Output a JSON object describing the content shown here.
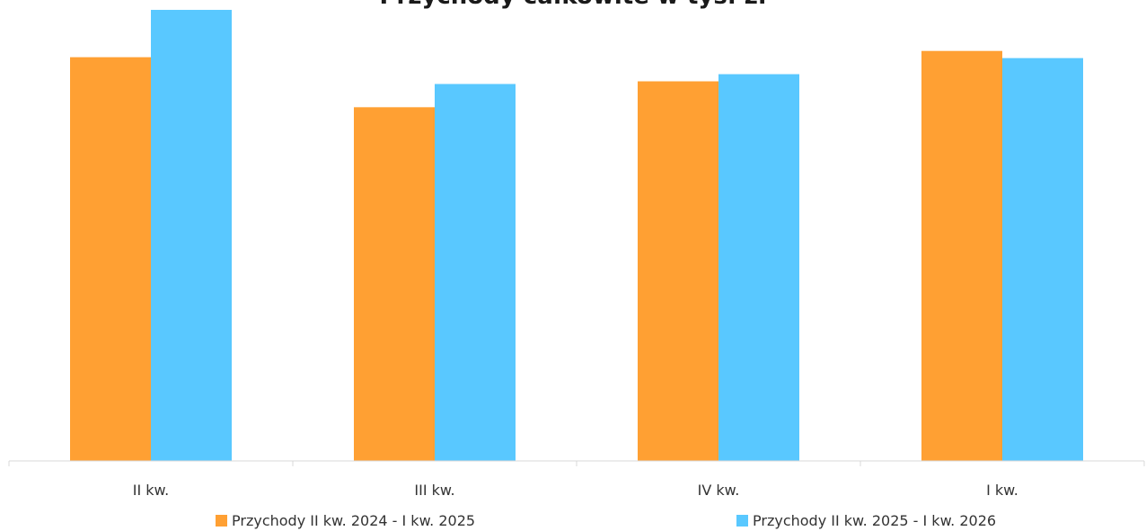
{
  "chart_data": {
    "type": "bar",
    "title": "Przychody całkowite w tys. zł",
    "categories": [
      "II kw.",
      "III kw.",
      "IV kw.",
      "I kw."
    ],
    "series": [
      {
        "name": "Przychody II kw. 2024 - I kw. 2025",
        "color": "#FFA033",
        "values": [
          452,
          396,
          425,
          459
        ]
      },
      {
        "name": "Przychody II kw. 2025 - I kw. 2026",
        "color": "#59C8FF",
        "values": [
          505,
          422,
          433,
          451
        ]
      }
    ],
    "ylim": [
      0,
      510
    ],
    "grid": false,
    "legend": "bottom"
  }
}
